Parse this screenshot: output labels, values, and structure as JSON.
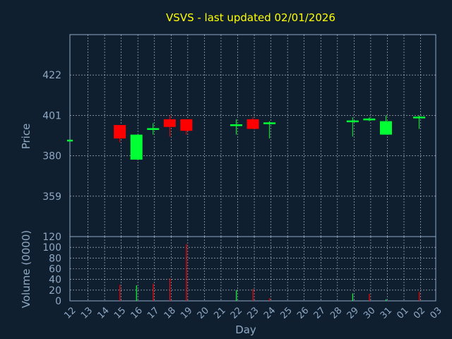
{
  "title": "VSVS - last updated 02/01/2026",
  "colors": {
    "background": "#0f1f30",
    "title": "#ffff00",
    "axis_text": "#8fa9c3",
    "up": "#00ff33",
    "down": "#ff0000",
    "grid": "#ffffff"
  },
  "chart_data": [
    {
      "type": "candlestick",
      "ylabel": "Price",
      "ylim": [
        338,
        443
      ],
      "yticks": [
        359,
        380,
        401,
        422
      ],
      "x_categories": [
        "12",
        "13",
        "14",
        "15",
        "16",
        "17",
        "18",
        "19",
        "20",
        "21",
        "22",
        "23",
        "24",
        "25",
        "26",
        "27",
        "28",
        "29",
        "30",
        "31",
        "01",
        "02",
        "03"
      ],
      "grid": true,
      "candles": [
        {
          "day": "12",
          "open": 388,
          "close": 388,
          "high": 388,
          "low": 388
        },
        {
          "day": "15",
          "open": 396,
          "close": 389,
          "high": 396,
          "low": 387
        },
        {
          "day": "16",
          "open": 378,
          "close": 391,
          "high": 391,
          "low": 378
        },
        {
          "day": "17",
          "open": 394,
          "close": 394,
          "high": 397,
          "low": 391
        },
        {
          "day": "18",
          "open": 399,
          "close": 395,
          "high": 401,
          "low": 390
        },
        {
          "day": "19",
          "open": 399,
          "close": 393,
          "high": 399,
          "low": 391
        },
        {
          "day": "22",
          "open": 396,
          "close": 396,
          "high": 399,
          "low": 391
        },
        {
          "day": "23",
          "open": 399,
          "close": 394,
          "high": 400,
          "low": 394
        },
        {
          "day": "24",
          "open": 397,
          "close": 397,
          "high": 398,
          "low": 389
        },
        {
          "day": "29",
          "open": 398,
          "close": 398,
          "high": 400,
          "low": 390
        },
        {
          "day": "30",
          "open": 399,
          "close": 399,
          "high": 400,
          "low": 398
        },
        {
          "day": "31",
          "open": 391,
          "close": 398,
          "high": 401,
          "low": 391
        },
        {
          "day": "02",
          "open": 400,
          "close": 400,
          "high": 401,
          "low": 394
        }
      ]
    },
    {
      "type": "bar",
      "ylabel": "Volume (0000)",
      "xlabel": "Day",
      "ylim": [
        0,
        120
      ],
      "yticks": [
        0,
        20,
        40,
        60,
        80,
        100,
        120
      ],
      "x_categories": [
        "12",
        "13",
        "14",
        "15",
        "16",
        "17",
        "18",
        "19",
        "20",
        "21",
        "22",
        "23",
        "24",
        "25",
        "26",
        "27",
        "28",
        "29",
        "30",
        "31",
        "01",
        "02",
        "03"
      ],
      "grid": true,
      "bars": [
        {
          "day": "15",
          "value": 30,
          "direction": "down"
        },
        {
          "day": "16",
          "value": 29,
          "direction": "up"
        },
        {
          "day": "17",
          "value": 32,
          "direction": "down"
        },
        {
          "day": "18",
          "value": 42,
          "direction": "down"
        },
        {
          "day": "19",
          "value": 106,
          "direction": "down"
        },
        {
          "day": "22",
          "value": 20,
          "direction": "up"
        },
        {
          "day": "23",
          "value": 22,
          "direction": "down"
        },
        {
          "day": "24",
          "value": 5,
          "direction": "down"
        },
        {
          "day": "29",
          "value": 14,
          "direction": "up"
        },
        {
          "day": "30",
          "value": 13,
          "direction": "down"
        },
        {
          "day": "31",
          "value": 3,
          "direction": "up"
        },
        {
          "day": "02",
          "value": 17,
          "direction": "down"
        }
      ]
    }
  ]
}
